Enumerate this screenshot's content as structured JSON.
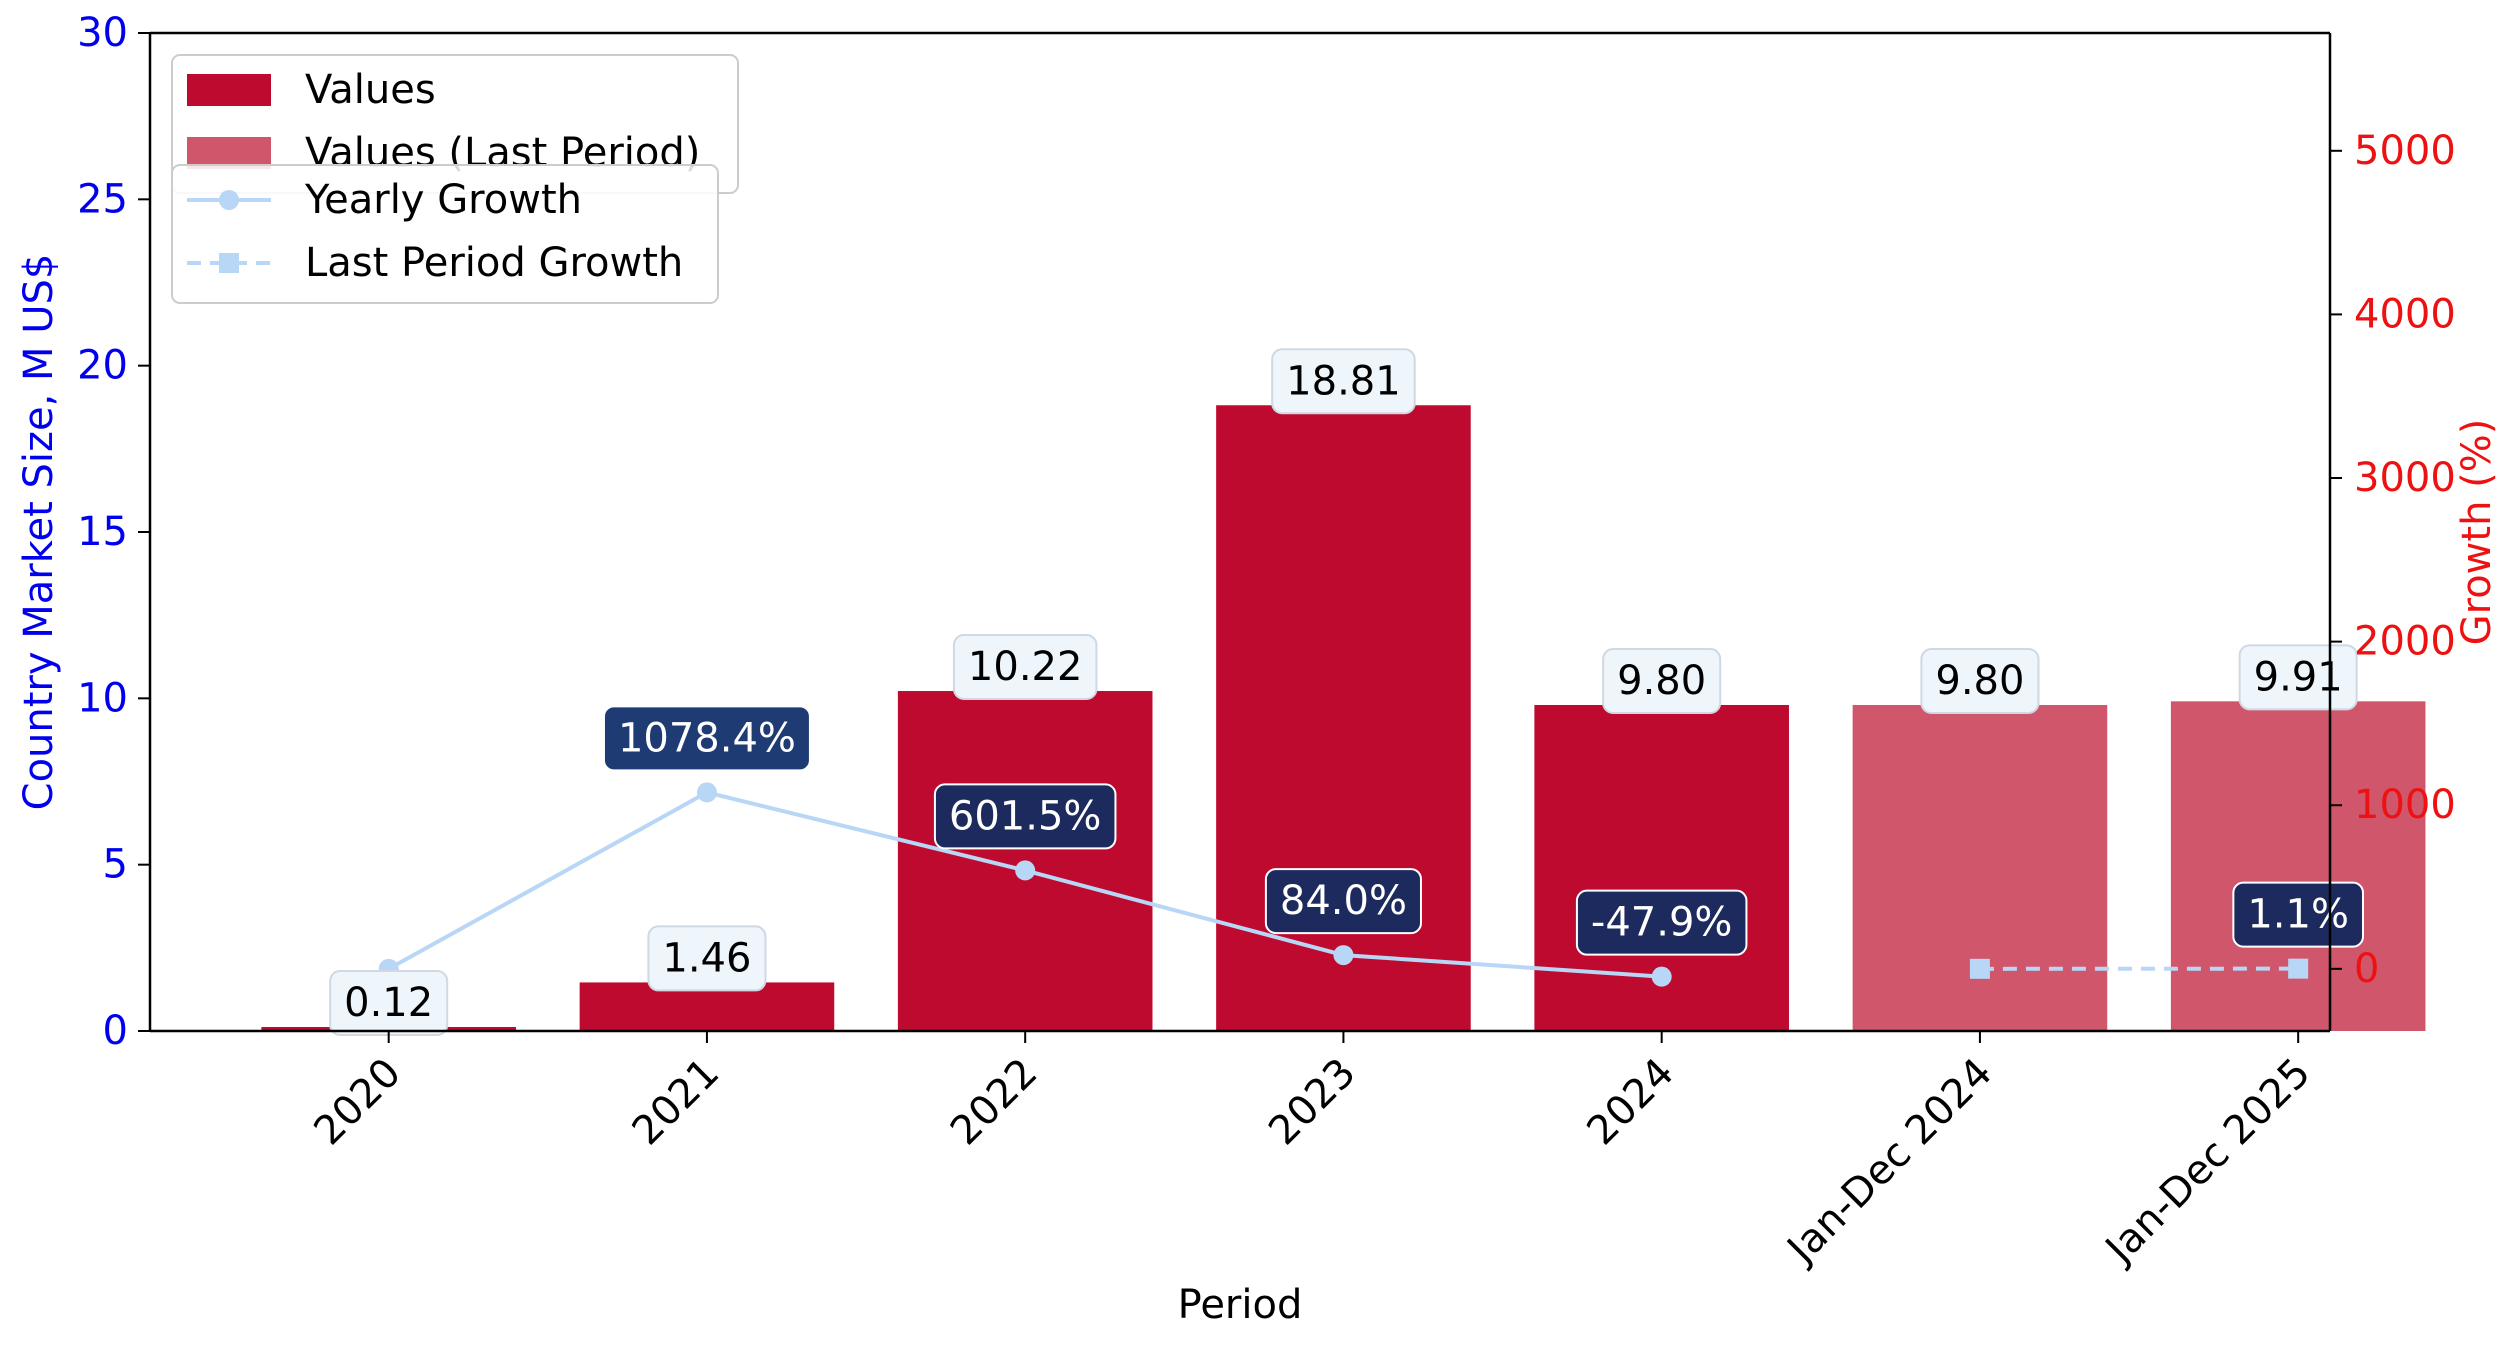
{
  "chart_data": {
    "type": "bar",
    "categories": [
      "2020",
      "2021",
      "2022",
      "2023",
      "2024",
      "Jan-Dec 2024",
      "Jan-Dec 2025"
    ],
    "series": [
      {
        "name": "Values",
        "values": [
          0.12,
          1.46,
          10.22,
          18.81,
          9.8,
          null,
          null
        ],
        "labels": [
          "0.12",
          "1.46",
          "10.22",
          "18.81",
          "9.80",
          "",
          ""
        ],
        "color": "#bf0a30"
      },
      {
        "name": "Values (Last Period)",
        "values": [
          null,
          null,
          null,
          null,
          null,
          9.8,
          9.91
        ],
        "labels": [
          "",
          "",
          "",
          "",
          "",
          "9.80",
          "9.91"
        ],
        "color": "#d0566c"
      },
      {
        "name": "Yearly Growth",
        "axis": "right",
        "values": [
          0,
          1078.4,
          601.5,
          84.0,
          -47.9,
          null,
          null
        ],
        "labels": [
          "",
          "1078.4%",
          "601.5%",
          "84.0%",
          "-47.9%",
          "",
          ""
        ],
        "color": "#b8d6f5"
      },
      {
        "name": "Last Period Growth",
        "axis": "right",
        "values": [
          null,
          null,
          null,
          null,
          null,
          0,
          1.1
        ],
        "labels": [
          "",
          "",
          "",
          "",
          "",
          "",
          "1.1%"
        ],
        "color": "#b8d6f5"
      }
    ],
    "xlabel": "Period",
    "ylabel": "Country Market Size, M US$",
    "y2label": "Growth (%)",
    "ylim": [
      0,
      30
    ],
    "y2lim": [
      -380,
      5720
    ],
    "yticks": [
      0,
      5,
      10,
      15,
      20,
      25,
      30
    ],
    "y2ticks": [
      0,
      1000,
      2000,
      3000,
      4000,
      5000
    ],
    "grid": false,
    "legend_position": "top-left",
    "colors": {
      "left_axis": "#0000ee",
      "right_axis": "#ee1111",
      "growth_label_bg": [
        "#1f3b73",
        "#1c2a5e"
      ]
    }
  }
}
